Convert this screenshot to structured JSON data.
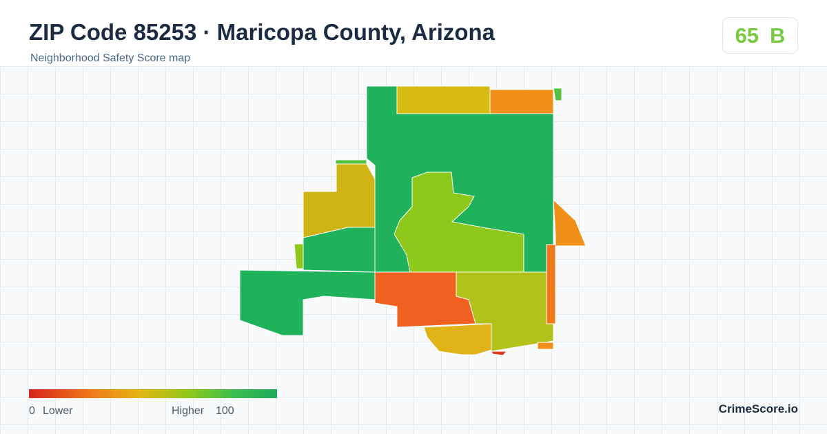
{
  "header": {
    "title": "ZIP Code 85253 · Maricopa County, Arizona",
    "subtitle": "Neighborhood Safety Score map"
  },
  "badge": {
    "score": "65",
    "grade": "B"
  },
  "legend": {
    "min": "0",
    "min_label": "Lower",
    "max_label": "Higher",
    "max": "100"
  },
  "brand": "CrimeScore.io"
}
